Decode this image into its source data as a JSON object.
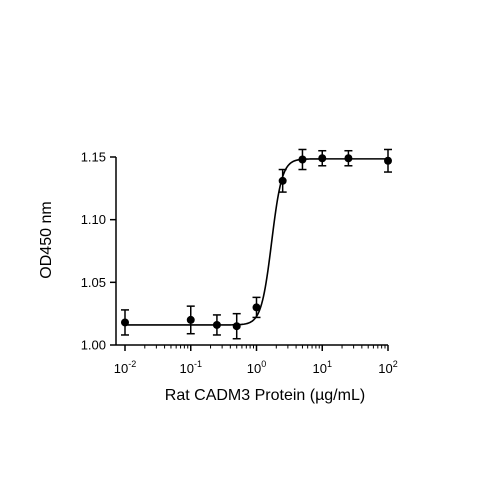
{
  "chart_data": {
    "type": "scatter",
    "title": "",
    "xlabel": "Rat CADM3 Protein (µg/mL)",
    "ylabel": "OD450 nm",
    "x_scale": "log",
    "xlim": [
      0.01,
      100
    ],
    "ylim": [
      1.0,
      1.15
    ],
    "x_ticks": [
      {
        "value": 0.01,
        "base": "10",
        "exp": "-2"
      },
      {
        "value": 0.1,
        "base": "10",
        "exp": "-1"
      },
      {
        "value": 1,
        "base": "10",
        "exp": "0"
      },
      {
        "value": 10,
        "base": "10",
        "exp": "1"
      },
      {
        "value": 100,
        "base": "10",
        "exp": "2"
      }
    ],
    "y_ticks": [
      {
        "value": 1.0,
        "label": "1.00"
      },
      {
        "value": 1.05,
        "label": "1.05"
      },
      {
        "value": 1.1,
        "label": "1.10"
      },
      {
        "value": 1.15,
        "label": "1.15"
      }
    ],
    "points": [
      {
        "x": 0.01,
        "y": 1.018,
        "err": 0.01
      },
      {
        "x": 0.1,
        "y": 1.02,
        "err": 0.011
      },
      {
        "x": 0.25,
        "y": 1.016,
        "err": 0.008
      },
      {
        "x": 0.5,
        "y": 1.015,
        "err": 0.01
      },
      {
        "x": 1.0,
        "y": 1.03,
        "err": 0.008
      },
      {
        "x": 2.5,
        "y": 1.131,
        "err": 0.009
      },
      {
        "x": 5.0,
        "y": 1.148,
        "err": 0.008
      },
      {
        "x": 10,
        "y": 1.149,
        "err": 0.006
      },
      {
        "x": 25,
        "y": 1.149,
        "err": 0.006
      },
      {
        "x": 100,
        "y": 1.147,
        "err": 0.009
      }
    ],
    "fit": {
      "model": "4PL",
      "bottom": 1.016,
      "top": 1.1485,
      "ec50": 1.7,
      "hill": 5.5
    },
    "grid": false,
    "legend": "none",
    "colors": {
      "marker": "#000000",
      "line": "#000000",
      "axis": "#000000"
    }
  }
}
